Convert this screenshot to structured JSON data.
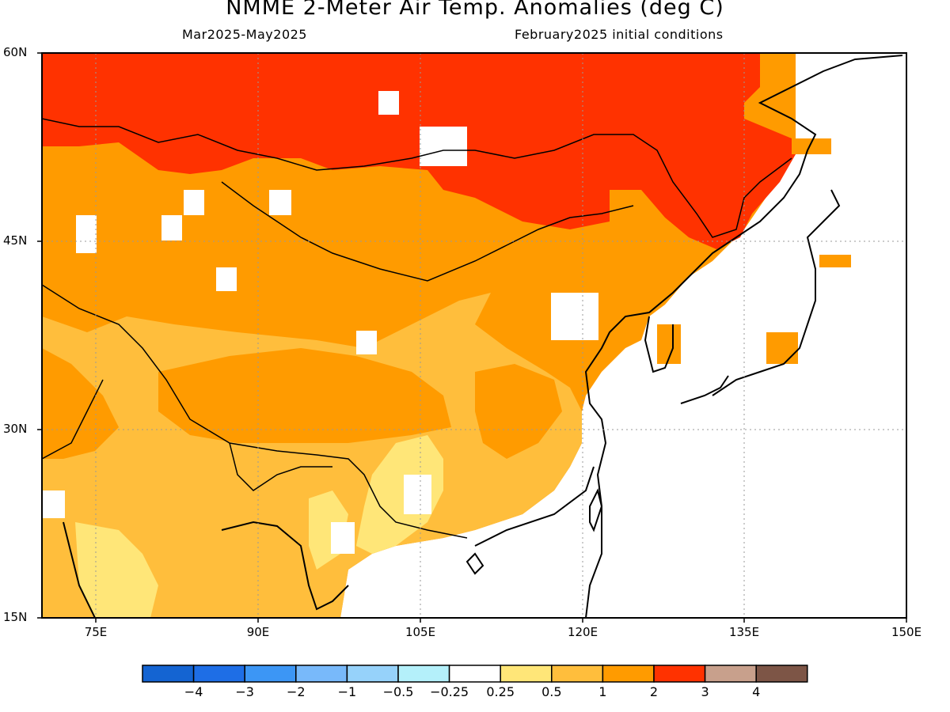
{
  "title": "NMME 2-Meter Air Temp. Anomalies (deg C)",
  "subtitle_left": "Mar2025-May2025",
  "subtitle_right": "February2025 initial conditions",
  "map": {
    "lon_range": [
      70,
      150
    ],
    "lat_range": [
      15,
      60
    ],
    "lat_labels": [
      "60N",
      "45N",
      "30N",
      "15N"
    ],
    "lon_labels": [
      "75E",
      "90E",
      "105E",
      "120E",
      "135E",
      "150E"
    ],
    "gridlines": "dotted"
  },
  "colorbar": {
    "colors": [
      "#1464d2",
      "#1e6ee6",
      "#3c96f5",
      "#78b9fa",
      "#96d2fa",
      "#b4f0fa",
      "#ffffff",
      "#ffe678",
      "#ffbe3c",
      "#ff9b00",
      "#ff3200",
      "#c8a08c",
      "#7d5546"
    ],
    "labels": [
      "-4",
      "-3",
      "-2",
      "-1",
      "-0.5",
      "-0.25",
      "0.25",
      "0.5",
      "1",
      "2",
      "3",
      "4"
    ]
  }
}
